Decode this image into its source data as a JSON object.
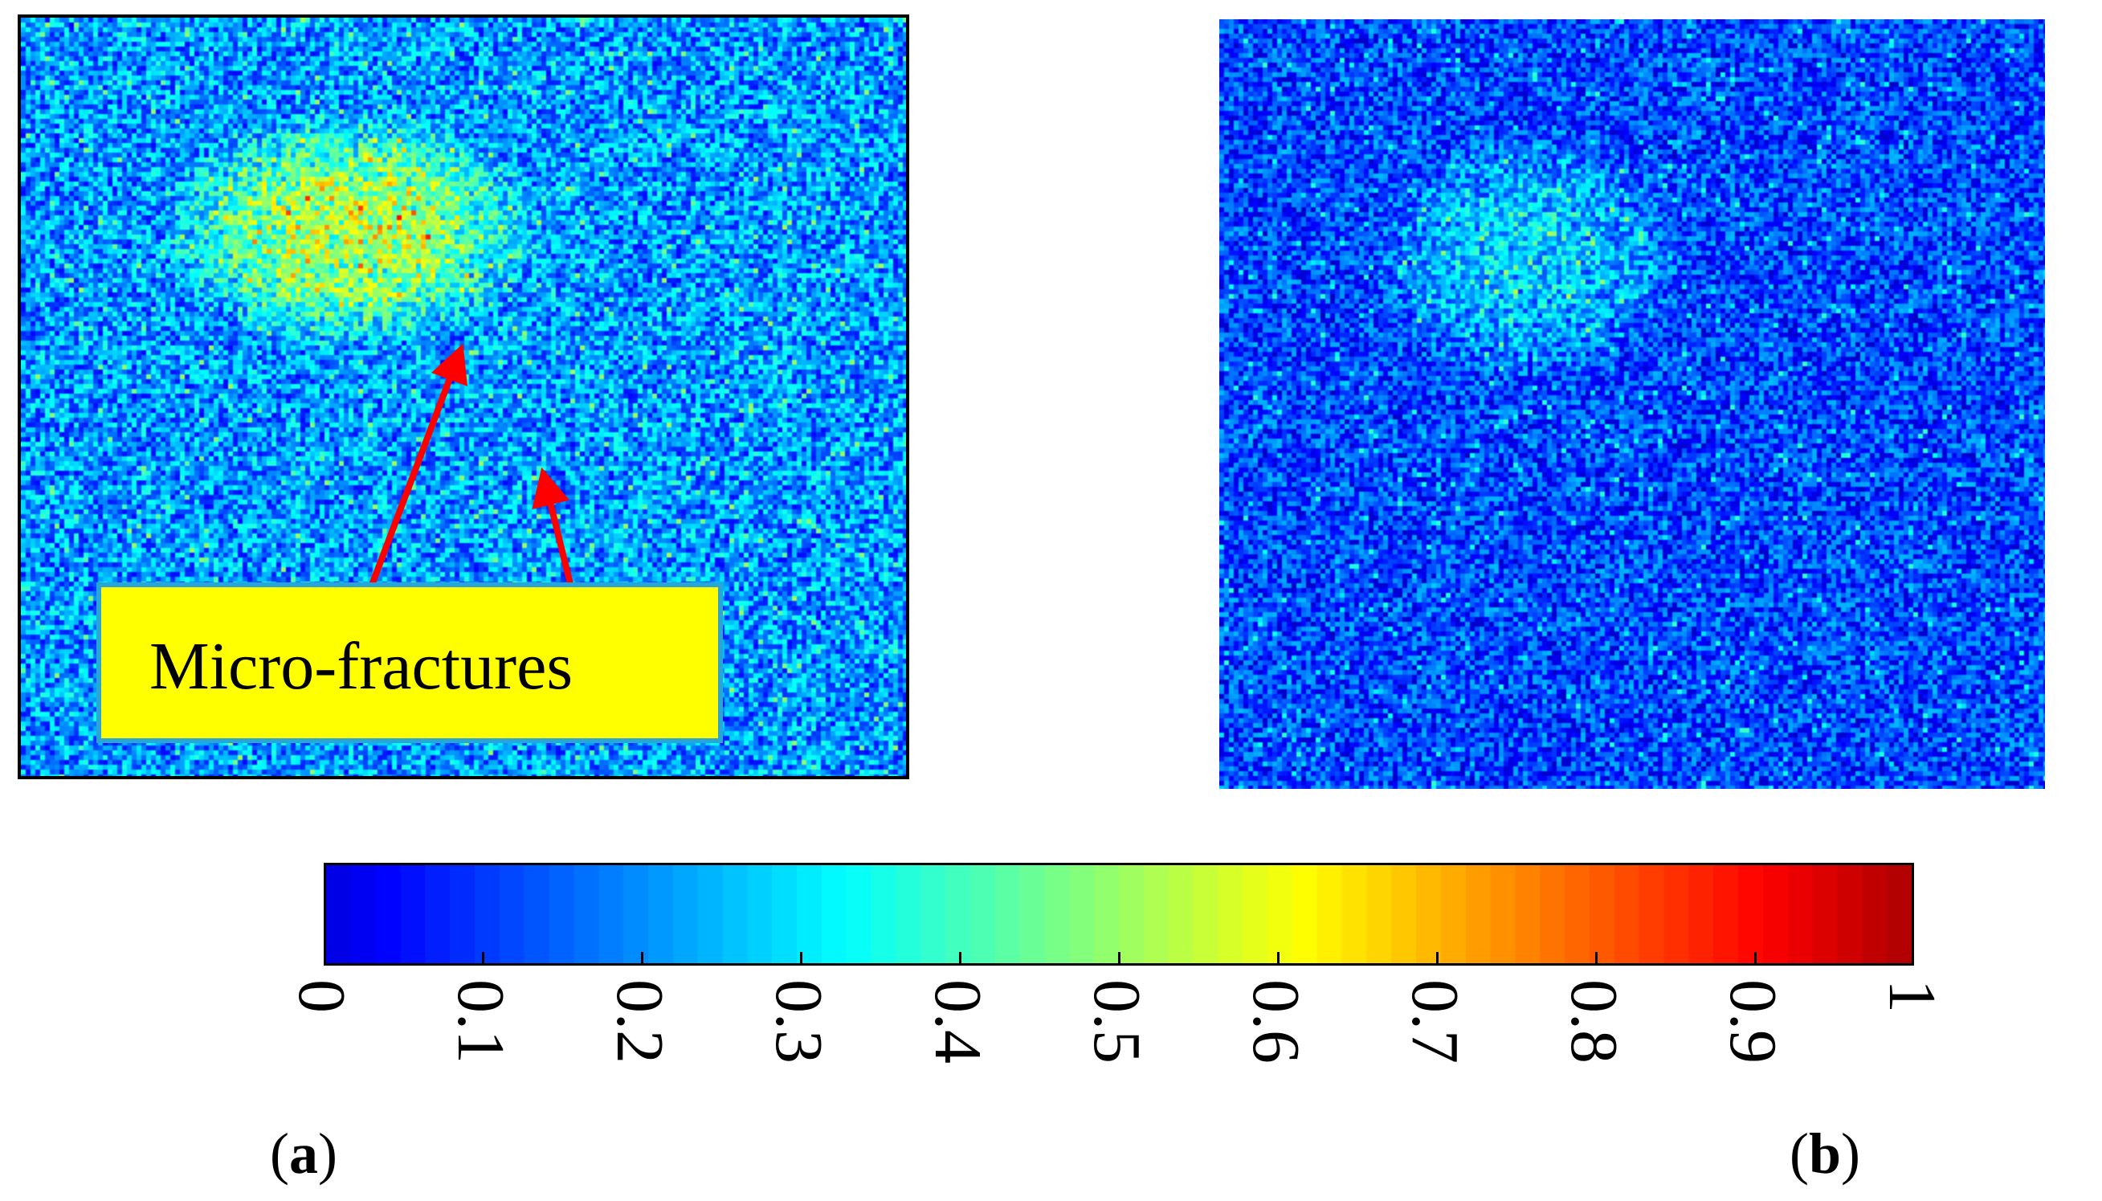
{
  "panels": [
    {
      "id": "a",
      "label": "a",
      "label_open": "(",
      "label_close": ")"
    },
    {
      "id": "b",
      "label": "b",
      "label_open": "(",
      "label_close": ")"
    }
  ],
  "annotation": {
    "text": "Micro-fractures",
    "box_color": "#ffff00",
    "box_border_color": "#29a6d6",
    "arrow_color": "#ff0000"
  },
  "colorbar": {
    "colormap": "jet",
    "min": 0,
    "max": 1,
    "tick_labels": [
      "0",
      "0.1",
      "0.2",
      "0.3",
      "0.4",
      "0.5",
      "0.6",
      "0.7",
      "0.8",
      "0.9",
      "1"
    ]
  },
  "colors": {
    "background": "#ffffff",
    "noise_low": "#1e3cd6",
    "noise_mid": "#00c8e6",
    "hotspot": "#40e040"
  }
}
